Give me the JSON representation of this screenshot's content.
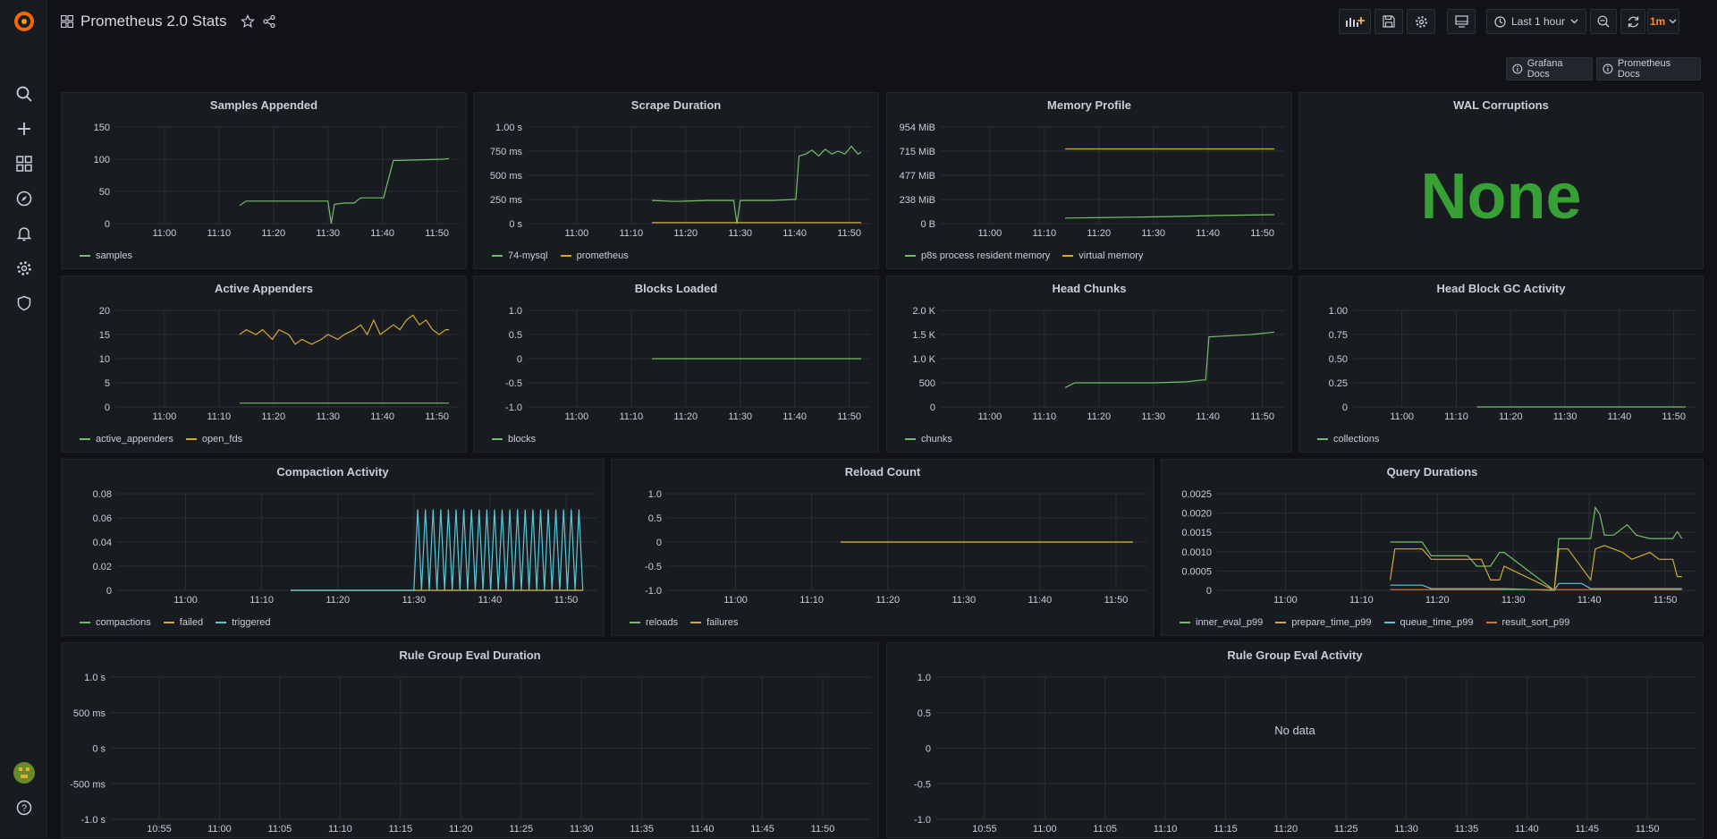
{
  "app": {
    "title": "Prometheus 2.0 Stats"
  },
  "toolbar": {
    "time_range": "Last 1 hour",
    "refresh": "1m"
  },
  "links": [
    {
      "label": "Grafana Docs"
    },
    {
      "label": "Prometheus Docs"
    }
  ],
  "colors": {
    "green": "#73bf69",
    "yellow": "#d4a933",
    "cyan": "#5ac8d8",
    "orange": "#e0752d",
    "stat_green": "#37a136"
  },
  "panels": [
    {
      "id": "samples-appended",
      "title": "Samples Appended",
      "legend": [
        "samples"
      ]
    },
    {
      "id": "scrape-duration",
      "title": "Scrape Duration",
      "legend": [
        "74-mysql",
        "prometheus"
      ]
    },
    {
      "id": "memory-profile",
      "title": "Memory Profile",
      "legend": [
        "p8s process resident memory",
        "virtual memory"
      ]
    },
    {
      "id": "wal-corruptions",
      "title": "WAL Corruptions",
      "value": "None"
    },
    {
      "id": "active-appenders",
      "title": "Active Appenders",
      "legend": [
        "active_appenders",
        "open_fds"
      ]
    },
    {
      "id": "blocks-loaded",
      "title": "Blocks Loaded",
      "legend": [
        "blocks"
      ]
    },
    {
      "id": "head-chunks",
      "title": "Head Chunks",
      "legend": [
        "chunks"
      ]
    },
    {
      "id": "head-block-gc",
      "title": "Head Block GC Activity",
      "legend": [
        "collections"
      ]
    },
    {
      "id": "compaction-activity",
      "title": "Compaction Activity",
      "legend": [
        "compactions",
        "failed",
        "triggered"
      ]
    },
    {
      "id": "reload-count",
      "title": "Reload Count",
      "legend": [
        "reloads",
        "failures"
      ]
    },
    {
      "id": "query-durations",
      "title": "Query Durations",
      "legend": [
        "inner_eval_p99",
        "prepare_time_p99",
        "queue_time_p99",
        "result_sort_p99"
      ]
    },
    {
      "id": "rule-group-eval-duration",
      "title": "Rule Group Eval Duration",
      "legend": []
    },
    {
      "id": "rule-group-eval-activity",
      "title": "Rule Group Eval Activity",
      "legend": [],
      "no_data": "No data"
    }
  ],
  "chart_data": [
    {
      "type": "line",
      "title": "Samples Appended",
      "y_ticks": [
        "150",
        "100",
        "50",
        "0"
      ],
      "x_ticks": [
        "11:00",
        "11:10",
        "11:20",
        "11:30",
        "11:40",
        "11:50"
      ],
      "ylim": [
        0,
        150
      ],
      "series": [
        {
          "name": "samples",
          "color": "#73bf69",
          "x": [
            11.23,
            11.25,
            11.29,
            11.5,
            11.51,
            11.52,
            11.55,
            11.58,
            11.6,
            11.67,
            11.7,
            11.72,
            11.85,
            11.87
          ],
          "values": [
            28,
            35,
            35,
            35,
            0,
            30,
            32,
            32,
            40,
            40,
            98,
            98,
            100,
            101
          ]
        }
      ]
    },
    {
      "type": "line",
      "title": "Scrape Duration",
      "y_ticks": [
        "1.00 s",
        "750 ms",
        "500 ms",
        "250 ms",
        "0 s"
      ],
      "x_ticks": [
        "11:00",
        "11:10",
        "11:20",
        "11:30",
        "11:40",
        "11:50"
      ],
      "ylim": [
        0,
        1
      ],
      "series": [
        {
          "name": "74-mysql",
          "color": "#73bf69",
          "x": [
            11.23,
            11.3,
            11.4,
            11.48,
            11.49,
            11.5,
            11.55,
            11.6,
            11.66,
            11.67,
            11.68,
            11.7,
            11.72,
            11.74,
            11.76,
            11.78,
            11.8,
            11.82,
            11.84,
            11.86,
            11.87
          ],
          "values": [
            0.24,
            0.23,
            0.24,
            0.24,
            0,
            0.24,
            0.24,
            0.24,
            0.25,
            0.25,
            0.7,
            0.72,
            0.76,
            0.7,
            0.77,
            0.72,
            0.75,
            0.72,
            0.8,
            0.72,
            0.74
          ]
        },
        {
          "name": "prometheus",
          "color": "#d4a933",
          "x": [
            11.23,
            11.87
          ],
          "values": [
            0.01,
            0.01
          ]
        }
      ]
    },
    {
      "type": "line",
      "title": "Memory Profile",
      "y_ticks": [
        "954 MiB",
        "715 MiB",
        "477 MiB",
        "238 MiB",
        "0 B"
      ],
      "x_ticks": [
        "11:00",
        "11:10",
        "11:20",
        "11:30",
        "11:40",
        "11:50"
      ],
      "ylim": [
        0,
        954
      ],
      "series": [
        {
          "name": "p8s process resident memory",
          "color": "#73bf69",
          "x": [
            11.23,
            11.4,
            11.55,
            11.7,
            11.87
          ],
          "values": [
            55,
            62,
            70,
            80,
            88
          ]
        },
        {
          "name": "virtual memory",
          "color": "#d4a933",
          "x": [
            11.23,
            11.87
          ],
          "values": [
            738,
            738
          ]
        }
      ]
    },
    {
      "type": "line",
      "title": "Active Appenders",
      "y_ticks": [
        "20",
        "15",
        "10",
        "5",
        "0"
      ],
      "x_ticks": [
        "11:00",
        "11:10",
        "11:20",
        "11:30",
        "11:40",
        "11:50"
      ],
      "ylim": [
        0,
        20
      ],
      "series": [
        {
          "name": "active_appenders",
          "color": "#73bf69",
          "x": [
            11.23,
            11.87
          ],
          "values": [
            0.8,
            0.8
          ]
        },
        {
          "name": "open_fds",
          "color": "#d4a933",
          "x": [
            11.23,
            11.25,
            11.28,
            11.3,
            11.33,
            11.35,
            11.38,
            11.4,
            11.42,
            11.45,
            11.48,
            11.5,
            11.53,
            11.55,
            11.58,
            11.6,
            11.62,
            11.64,
            11.66,
            11.68,
            11.7,
            11.72,
            11.74,
            11.76,
            11.78,
            11.8,
            11.82,
            11.84,
            11.86,
            11.87
          ],
          "values": [
            15,
            16,
            15,
            16,
            14,
            16,
            15,
            13,
            14,
            13,
            14,
            15,
            14,
            15,
            16,
            17,
            15,
            18,
            15,
            16,
            17,
            16,
            18,
            19,
            17,
            18,
            16,
            15,
            16,
            16
          ]
        }
      ]
    },
    {
      "type": "line",
      "title": "Blocks Loaded",
      "y_ticks": [
        "1.0",
        "0.5",
        "0",
        "-0.5",
        "-1.0"
      ],
      "x_ticks": [
        "11:00",
        "11:10",
        "11:20",
        "11:30",
        "11:40",
        "11:50"
      ],
      "ylim": [
        -1,
        1
      ],
      "series": [
        {
          "name": "blocks",
          "color": "#73bf69",
          "x": [
            11.23,
            11.87
          ],
          "values": [
            0,
            0
          ]
        }
      ]
    },
    {
      "type": "line",
      "title": "Head Chunks",
      "y_ticks": [
        "2.0 K",
        "1.5 K",
        "1.0 K",
        "500",
        "0"
      ],
      "x_ticks": [
        "11:00",
        "11:10",
        "11:20",
        "11:30",
        "11:40",
        "11:50"
      ],
      "ylim": [
        0,
        2000
      ],
      "series": [
        {
          "name": "chunks",
          "color": "#73bf69",
          "x": [
            11.23,
            11.26,
            11.3,
            11.5,
            11.6,
            11.65,
            11.66,
            11.67,
            11.8,
            11.87
          ],
          "values": [
            400,
            500,
            500,
            500,
            520,
            560,
            560,
            1450,
            1500,
            1550
          ]
        }
      ]
    },
    {
      "type": "line",
      "title": "Head Block GC Activity",
      "y_ticks": [
        "1.00",
        "0.75",
        "0.50",
        "0.25",
        "0"
      ],
      "x_ticks": [
        "11:00",
        "11:10",
        "11:20",
        "11:30",
        "11:40",
        "11:50"
      ],
      "ylim": [
        0,
        1
      ],
      "series": [
        {
          "name": "collections",
          "color": "#73bf69",
          "x": [
            11.23,
            11.87
          ],
          "values": [
            0,
            0
          ]
        }
      ]
    },
    {
      "type": "line",
      "title": "Compaction Activity",
      "y_ticks": [
        "0.08",
        "0.06",
        "0.04",
        "0.02",
        "0"
      ],
      "x_ticks": [
        "11:00",
        "11:10",
        "11:20",
        "11:30",
        "11:40",
        "11:50"
      ],
      "ylim": [
        0,
        0.08
      ],
      "series": [
        {
          "name": "compactions",
          "color": "#73bf69",
          "x": [
            11.23,
            11.87
          ],
          "values": [
            0,
            0
          ]
        },
        {
          "name": "failed",
          "color": "#d4a933",
          "x": [
            11.23,
            11.87
          ],
          "values": [
            0,
            0
          ]
        },
        {
          "name": "triggered",
          "color": "#5ac8d8",
          "x": [
            11.23,
            11.5,
            11.505,
            11.87
          ],
          "values": [
            0,
            0,
            0.067,
            0.067
          ],
          "sawtooth": true
        }
      ]
    },
    {
      "type": "line",
      "title": "Reload Count",
      "y_ticks": [
        "1.0",
        "0.5",
        "0",
        "-0.5",
        "-1.0"
      ],
      "x_ticks": [
        "11:00",
        "11:10",
        "11:20",
        "11:30",
        "11:40",
        "11:50"
      ],
      "ylim": [
        -1,
        1
      ],
      "series": [
        {
          "name": "reloads",
          "color": "#73bf69",
          "x": [
            11.23,
            11.87
          ],
          "values": [
            0,
            0
          ]
        },
        {
          "name": "failures",
          "color": "#d4a933",
          "x": [
            11.23,
            11.87
          ],
          "values": [
            0,
            0
          ]
        }
      ]
    },
    {
      "type": "line",
      "title": "Query Durations",
      "y_ticks": [
        "0.0025",
        "0.0020",
        "0.0015",
        "0.0010",
        "0.0005",
        "0"
      ],
      "x_ticks": [
        "11:00",
        "11:10",
        "11:20",
        "11:30",
        "11:40",
        "11:50"
      ],
      "ylim": [
        0,
        0.0028
      ],
      "series": [
        {
          "name": "inner_eval_p99",
          "color": "#73bf69",
          "x": [
            11.23,
            11.25,
            11.3,
            11.32,
            11.4,
            11.42,
            11.45,
            11.47,
            11.48,
            11.59,
            11.6,
            11.62,
            11.67,
            11.68,
            11.69,
            11.7,
            11.72,
            11.75,
            11.77,
            11.8,
            11.85,
            11.86,
            11.87
          ],
          "values": [
            0.0014,
            0.0014,
            0.0014,
            0.001,
            0.001,
            0.0007,
            0.0007,
            0.0011,
            0.0011,
            0,
            0.0015,
            0.0015,
            0.0015,
            0.0024,
            0.0022,
            0.0016,
            0.0016,
            0.0019,
            0.0016,
            0.0015,
            0.0015,
            0.0017,
            0.0015
          ]
        },
        {
          "name": "prepare_time_p99",
          "color": "#d4a933",
          "x": [
            11.23,
            11.24,
            11.3,
            11.32,
            11.43,
            11.45,
            11.47,
            11.48,
            11.59,
            11.6,
            11.62,
            11.67,
            11.68,
            11.7,
            11.74,
            11.76,
            11.8,
            11.82,
            11.85,
            11.86,
            11.87
          ],
          "values": [
            0.0003,
            0.0012,
            0.0012,
            0.0009,
            0.0009,
            0.0003,
            0.0003,
            0.0007,
            0,
            0.0012,
            0.0012,
            0.0003,
            0.0012,
            0.0013,
            0.0011,
            0.0009,
            0.0011,
            0.0009,
            0.0009,
            0.0004,
            0.0004
          ]
        },
        {
          "name": "queue_time_p99",
          "color": "#5ac8d8",
          "x": [
            11.23,
            11.3,
            11.32,
            11.48,
            11.59,
            11.6,
            11.65,
            11.67,
            11.87
          ],
          "values": [
            0.00015,
            0.00015,
            5e-05,
            5e-05,
            0,
            0.0002,
            0.0002,
            5e-05,
            5e-05
          ]
        },
        {
          "name": "result_sort_p99",
          "color": "#e0752d",
          "x": [
            11.23,
            11.48,
            11.59,
            11.87
          ],
          "values": [
            2e-05,
            2e-05,
            2e-05,
            2e-05
          ]
        }
      ]
    },
    {
      "type": "line",
      "title": "Rule Group Eval Duration",
      "y_ticks": [
        "1.0 s",
        "500 ms",
        "0 s",
        "-500 ms",
        "-1.0 s"
      ],
      "x_ticks": [
        "10:55",
        "11:00",
        "11:05",
        "11:10",
        "11:15",
        "11:20",
        "11:25",
        "11:30",
        "11:35",
        "11:40",
        "11:45",
        "11:50"
      ],
      "ylim": [
        -1,
        1
      ],
      "series": []
    },
    {
      "type": "line",
      "title": "Rule Group Eval Activity",
      "y_ticks": [
        "1.0",
        "0.5",
        "0",
        "-0.5",
        "-1.0"
      ],
      "x_ticks": [
        "10:55",
        "11:00",
        "11:05",
        "11:10",
        "11:15",
        "11:20",
        "11:25",
        "11:30",
        "11:35",
        "11:40",
        "11:45",
        "11:50"
      ],
      "ylim": [
        -1,
        1
      ],
      "series": []
    }
  ]
}
